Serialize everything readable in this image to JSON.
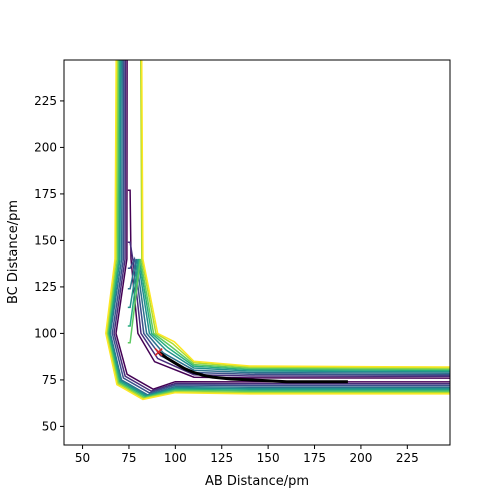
{
  "chart_data": {
    "type": "contour",
    "xlabel": "AB Distance/pm",
    "ylabel": "BC Distance/pm",
    "xlim": [
      40,
      248
    ],
    "ylim": [
      40,
      247
    ],
    "xticks": [
      50,
      75,
      100,
      125,
      150,
      175,
      200,
      225
    ],
    "yticks": [
      50,
      75,
      100,
      125,
      150,
      175,
      200,
      225
    ],
    "grid": false,
    "colormap": [
      "#440154",
      "#472d7b",
      "#3b528b",
      "#2c728e",
      "#21918c",
      "#28ae80",
      "#5ec962",
      "#addc30",
      "#fde725"
    ],
    "contour_levels": [
      {
        "ch_tip": 177,
        "vx": 75,
        "min": 75,
        "w": 1.8,
        "bot_x": 68,
        "bot_y": 68
      },
      {
        "ch_tip": 149,
        "vx": 75,
        "min": 75,
        "w": 3.5,
        "bot_x": 67,
        "bot_y": 67
      },
      {
        "ch_tip": 135,
        "vx": 75,
        "min": 75,
        "w": 5.0,
        "bot_x": 66,
        "bot_y": 66
      },
      {
        "ch_tip": 124,
        "vx": 75,
        "min": 75,
        "w": 6.5,
        "bot_x": 65,
        "bot_y": 65
      },
      {
        "ch_tip": 114,
        "vx": 75,
        "min": 75,
        "w": 8.0,
        "bot_x": 64.5,
        "bot_y": 64.5
      },
      {
        "ch_tip": 104,
        "vx": 75,
        "min": 75,
        "w": 9.2,
        "bot_x": 64,
        "bot_y": 64
      },
      {
        "ch_tip": 95,
        "vx": 75,
        "min": 75,
        "w": 10.3,
        "bot_x": 63.5,
        "bot_y": 63.5
      },
      {
        "ch_tip": 0,
        "vx": 75,
        "min": 75,
        "w": 11.5,
        "bot_x": 63,
        "bot_y": 63
      },
      {
        "ch_tip": 0,
        "vx": 75,
        "min": 75,
        "w": 12.5,
        "bot_x": 62.5,
        "bot_y": 62.5
      }
    ],
    "trajectory": {
      "color": "#000000",
      "points": [
        [
          91,
          90
        ],
        [
          95,
          87
        ],
        [
          100,
          84
        ],
        [
          105,
          81
        ],
        [
          110,
          79
        ],
        [
          115,
          77.5
        ],
        [
          120,
          76.5
        ],
        [
          130,
          75.5
        ],
        [
          140,
          75
        ],
        [
          150,
          74.5
        ],
        [
          160,
          74
        ],
        [
          170,
          74
        ],
        [
          180,
          74
        ],
        [
          193,
          74
        ]
      ]
    },
    "start_marker": {
      "symbol": "x",
      "color": "#d62728",
      "x": 91,
      "y": 90
    }
  }
}
